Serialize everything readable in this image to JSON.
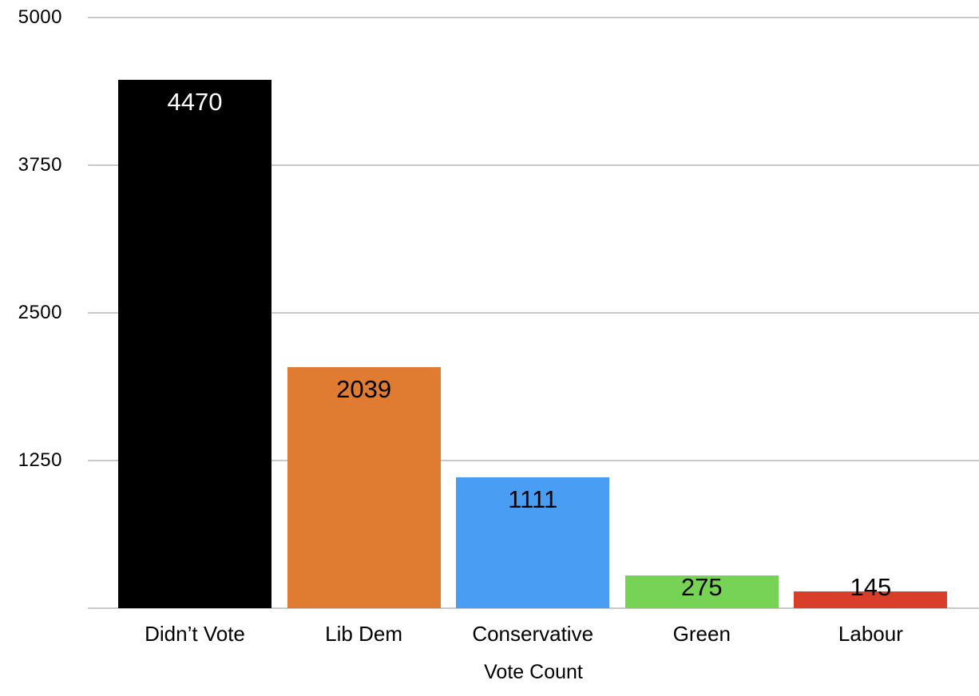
{
  "chart_data": {
    "type": "bar",
    "title": "",
    "xlabel": "Vote Count",
    "ylabel": "",
    "categories": [
      "Didn’t Vote",
      "Lib Dem",
      "Conservative",
      "Green",
      "Labour"
    ],
    "values": [
      4470,
      2039,
      1111,
      275,
      145
    ],
    "bar_colors": [
      "#000000",
      "#e07b32",
      "#499ef3",
      "#77d355",
      "#d83e2a"
    ],
    "value_label_colors": [
      "#ffffff",
      "#000000",
      "#000000",
      "#000000",
      "#000000"
    ],
    "value_labels": [
      "4470",
      "2039",
      "1111",
      "275",
      "145"
    ],
    "ylim": [
      0,
      5000
    ],
    "yticks": [
      5000,
      3750,
      2500,
      1250
    ],
    "ytick_labels": [
      "5000",
      "3750",
      "2500",
      "1250"
    ],
    "grid": true,
    "gridline_color": "#c9c9c9",
    "legend": "none",
    "background_color": "#ffffff"
  }
}
